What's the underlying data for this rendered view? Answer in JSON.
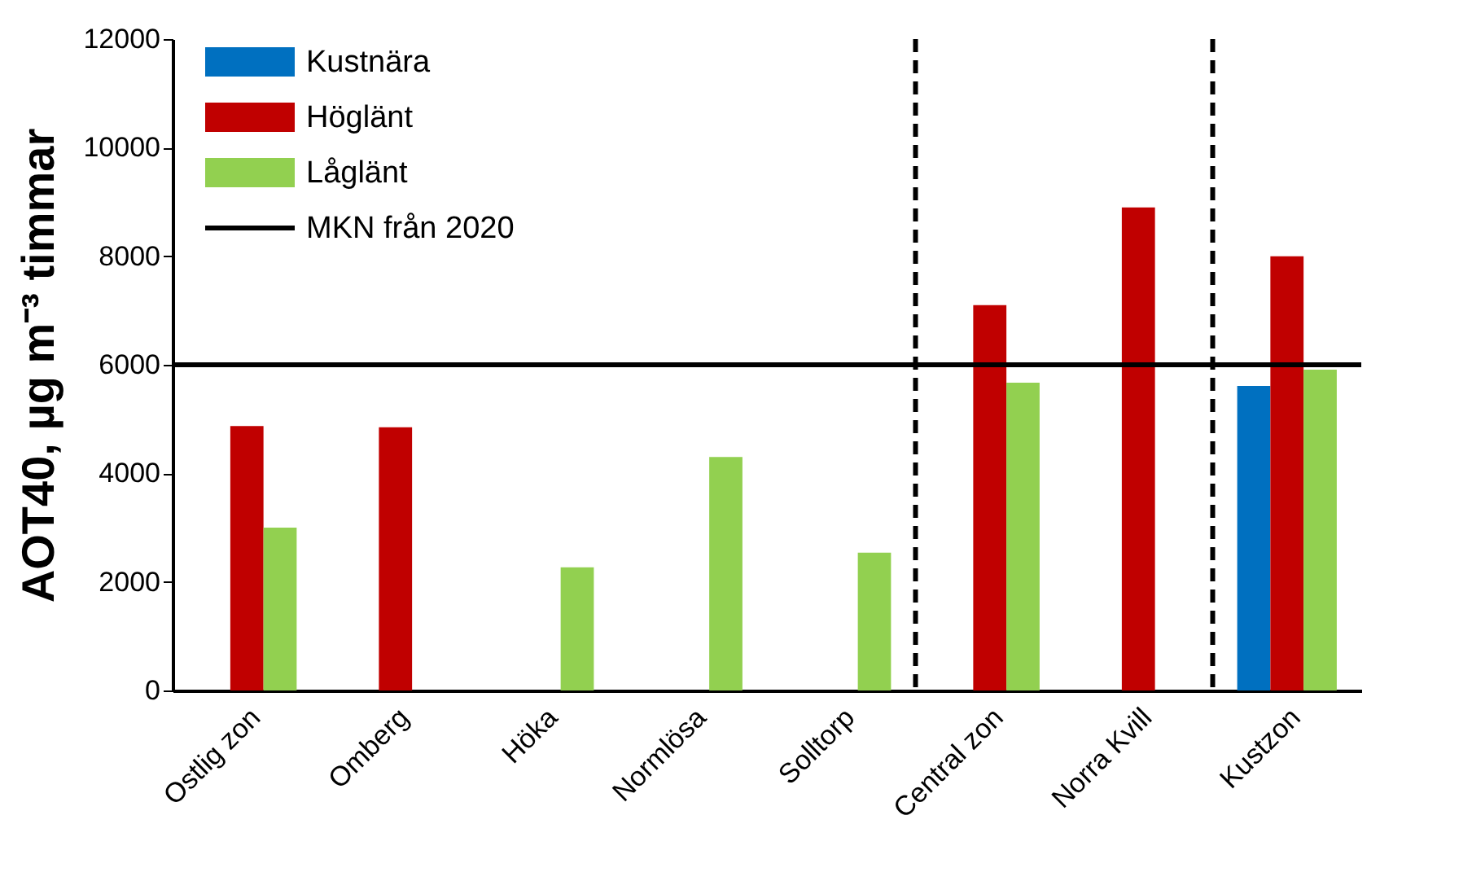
{
  "chart_data": {
    "type": "bar",
    "ylabel": "AOT40, µg m⁻³ timmar",
    "categories": [
      "Ostlig zon",
      "Omberg",
      "Höka",
      "Normlösa",
      "Solltorp",
      "Central zon",
      "Norra Kvill",
      "Kustzon"
    ],
    "series": [
      {
        "name": "Kustnära",
        "color": "#0070c0",
        "values": [
          null,
          null,
          null,
          null,
          null,
          null,
          null,
          5610
        ]
      },
      {
        "name": "Höglänt",
        "color": "#c00000",
        "values": [
          4870,
          4850,
          null,
          null,
          null,
          7100,
          8900,
          8000
        ]
      },
      {
        "name": "Låglänt",
        "color": "#92d050",
        "values": [
          3000,
          null,
          2270,
          4300,
          2540,
          5670,
          null,
          5910
        ]
      }
    ],
    "ylim": [
      0,
      12000
    ],
    "yticks": [
      0,
      2000,
      4000,
      6000,
      8000,
      10000,
      12000
    ],
    "ref_lines": [
      {
        "axis": "y",
        "value": 6000,
        "label": "MKN från 2020",
        "color": "#000000",
        "line_style": "solid"
      }
    ],
    "grid": false,
    "legend": "top left"
  }
}
